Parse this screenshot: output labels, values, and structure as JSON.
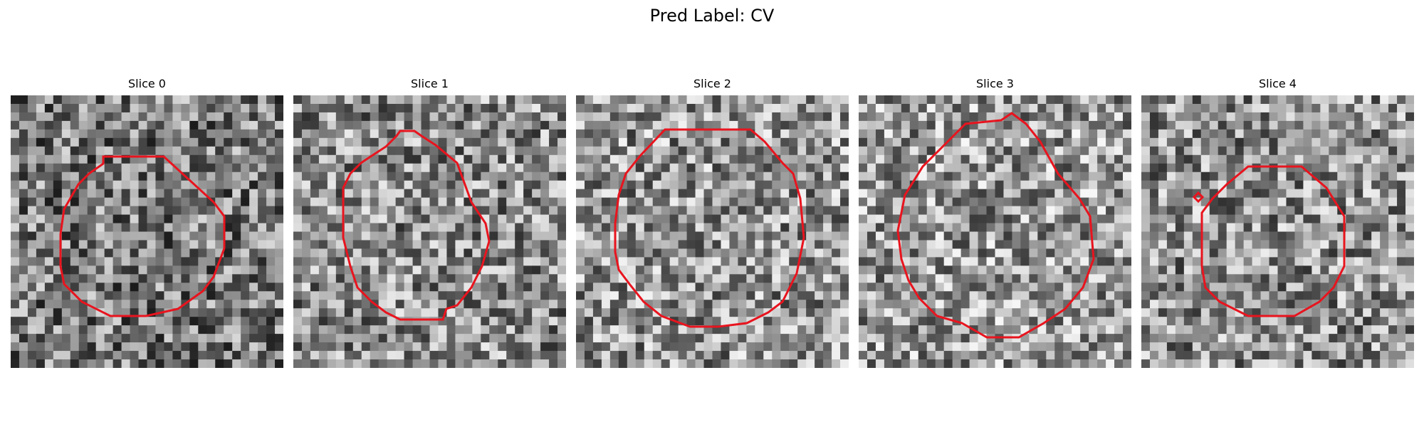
{
  "title": "Pred Label: CV",
  "slices": [
    {
      "label": "Slice 0",
      "contour_color": "#e8141e"
    },
    {
      "label": "Slice 1",
      "contour_color": "#e8141e"
    },
    {
      "label": "Slice 2",
      "contour_color": "#e8141e"
    },
    {
      "label": "Slice 3",
      "contour_color": "#e8141e"
    },
    {
      "label": "Slice 4",
      "contour_color": "#e8141e"
    }
  ]
}
